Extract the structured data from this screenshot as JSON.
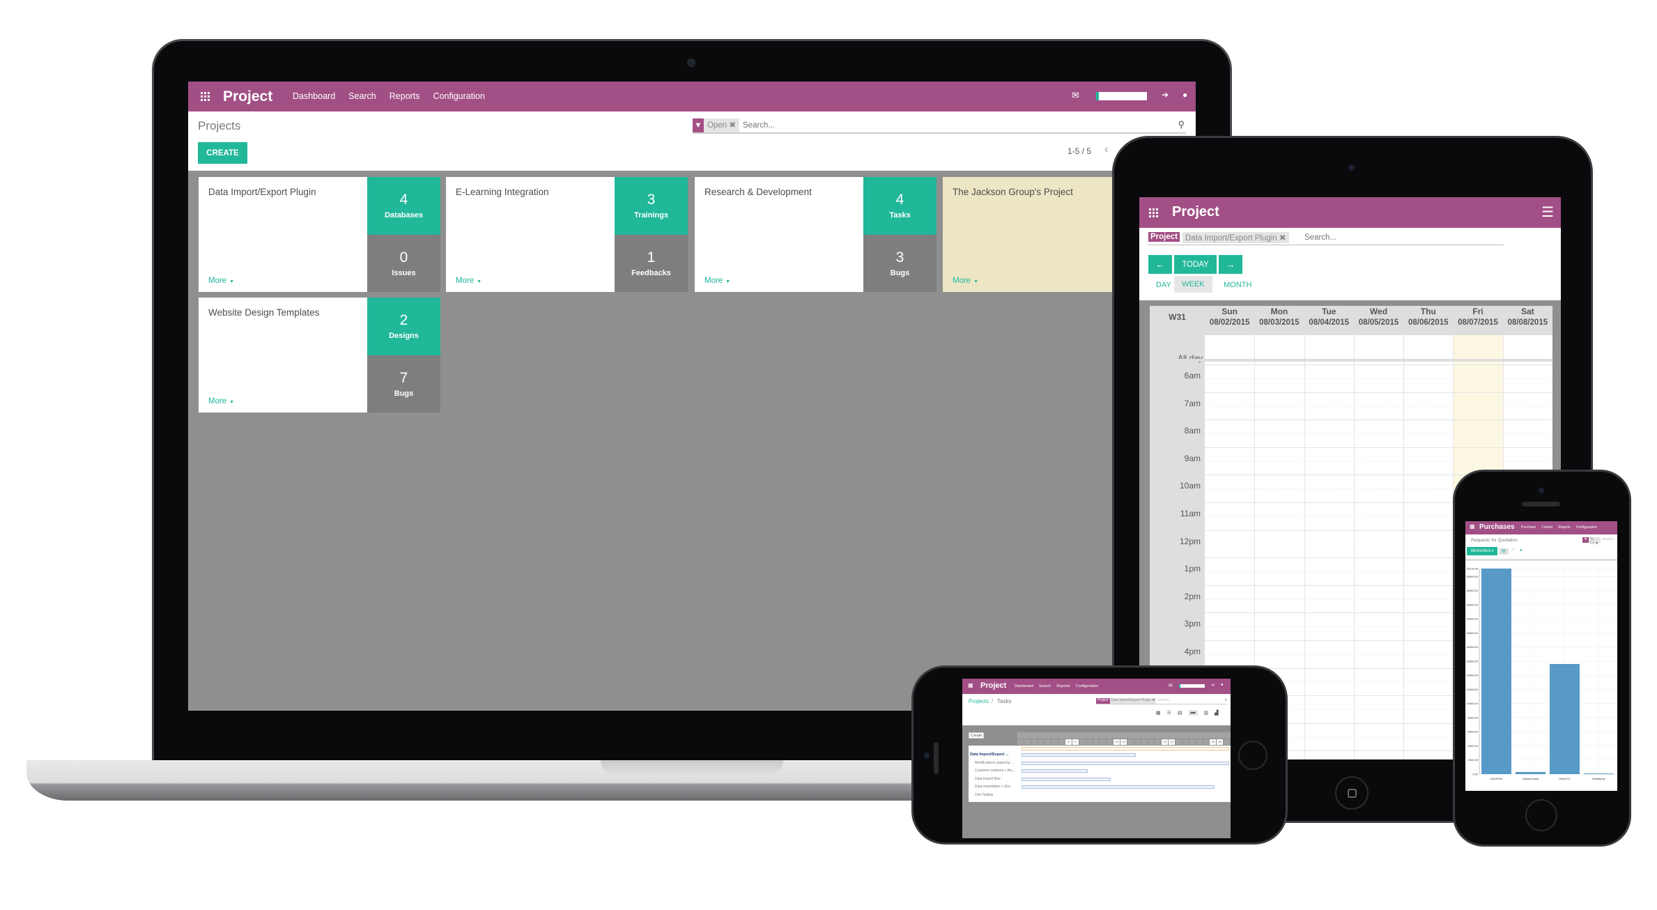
{
  "laptop": {
    "app_title": "Project",
    "menu": [
      "Dashboard",
      "Search",
      "Reports",
      "Configuration"
    ],
    "breadcrumb": "Projects",
    "create_label": "CREATE",
    "search": {
      "facet": "Open",
      "placeholder": "Search..."
    },
    "pager": "1-5 / 5",
    "icons": [
      "apps-grid-icon",
      "mail-icon",
      "sign-in-icon",
      "chat-icon",
      "search-icon",
      "filter-icon",
      "chevron-left-icon"
    ],
    "colors": {
      "brand": "#a24f86",
      "accent": "#21b799",
      "background": "#8f8f8f",
      "highlight_card": "#ede6c4"
    },
    "projects": [
      {
        "name": "Data Import/Export Plugin",
        "more": "More",
        "stats": [
          {
            "value": "4",
            "label": "Databases"
          },
          {
            "value": "0",
            "label": "Issues"
          }
        ]
      },
      {
        "name": "E-Learning Integration",
        "more": "More",
        "stats": [
          {
            "value": "3",
            "label": "Trainings"
          },
          {
            "value": "1",
            "label": "Feedbacks"
          }
        ]
      },
      {
        "name": "Research & Development",
        "more": "More",
        "stats": [
          {
            "value": "4",
            "label": "Tasks"
          },
          {
            "value": "3",
            "label": "Bugs"
          }
        ]
      },
      {
        "name": "The Jackson Group's Project",
        "more": "More",
        "stats": []
      },
      {
        "name": "Website Design Templates",
        "more": "More",
        "stats": [
          {
            "value": "2",
            "label": "Designs"
          },
          {
            "value": "7",
            "label": "Bugs"
          }
        ]
      }
    ]
  },
  "tablet": {
    "app_title": "Project",
    "search": {
      "facet_label": "Project",
      "facet_value": "Data Import/Export Plugin",
      "placeholder": "Search..."
    },
    "nav_buttons": {
      "today": "TODAY"
    },
    "view_tabs": [
      "DAY",
      "WEEK",
      "MONTH"
    ],
    "active_tab": "WEEK",
    "week": "W31",
    "all_day": "All day",
    "days": [
      {
        "name": "Sun",
        "date": "08/02/2015"
      },
      {
        "name": "Mon",
        "date": "08/03/2015"
      },
      {
        "name": "Tue",
        "date": "08/04/2015"
      },
      {
        "name": "Wed",
        "date": "08/05/2015"
      },
      {
        "name": "Thu",
        "date": "08/06/2015"
      },
      {
        "name": "Fri",
        "date": "08/07/2015",
        "today": true
      },
      {
        "name": "Sat",
        "date": "08/08/2015"
      }
    ],
    "hours": [
      "6am",
      "7am",
      "8am",
      "9am",
      "10am",
      "11am",
      "12pm",
      "1pm",
      "2pm",
      "3pm",
      "4pm"
    ]
  },
  "phone_landscape": {
    "app_title": "Project",
    "menu": [
      "Dashboard",
      "Search",
      "Reports",
      "Configuration"
    ],
    "breadcrumb": {
      "parent": "Projects",
      "sep": "/",
      "current": "Tasks"
    },
    "search": {
      "facet_label": "Project",
      "facet_value": "Data Import/Export Plugin",
      "placeholder": "Search..."
    },
    "create_label": "Create",
    "gantt_days": [
      "8",
      "9",
      "15",
      "16",
      "22",
      "23",
      "29",
      "30"
    ],
    "gantt_rows": [
      {
        "label": "Data Import/Export ...",
        "group": true,
        "progress": 0.55
      },
      {
        "label": "Modifications asked by ...",
        "progress": 1.0
      },
      {
        "label": "Customer analysis + Arc...",
        "progress": 0.32
      },
      {
        "label": "Data Export flow",
        "progress": 0.43
      },
      {
        "label": "Data importation + Doc",
        "progress": 0.93
      },
      {
        "label": "Unit Testing",
        "progress": 0
      }
    ]
  },
  "phone_portrait": {
    "app_title": "Purchases",
    "menu": [
      "Purchase",
      "Control",
      "Reports",
      "Configuration"
    ],
    "page_title": "Requests for Quotation",
    "measures_label": "MEASURES",
    "search": {
      "facet": "To Do",
      "placeholder": "Search..."
    },
    "chart_data": {
      "type": "bar",
      "categories": [
        "ASUSTeK",
        "Camptocamp",
        "Delta PC",
        "Mediapole"
      ],
      "values": [
        29119.3,
        300,
        15600,
        80
      ],
      "ylim": [
        0,
        29119.3
      ],
      "yticks": [
        "0.00",
        "2000.00",
        "4000.00",
        "6000.00",
        "8000.00",
        "10000.00",
        "12000.00",
        "14000.00",
        "16000.00",
        "18000.00",
        "20000.00",
        "22000.00",
        "24000.00",
        "26000.00",
        "28000.00",
        "29119.30"
      ],
      "grid": true,
      "color": "#5799c7"
    }
  }
}
